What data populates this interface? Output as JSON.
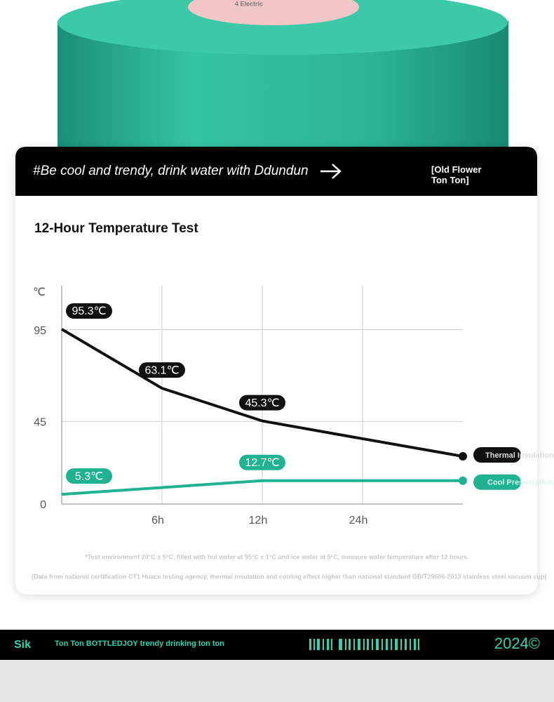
{
  "header": {
    "product_label": "4 Electric",
    "slogan": "#Be cool and trendy, drink water with Ddundun",
    "brand": "[Old Flower Ton Ton]"
  },
  "chart_data": {
    "type": "line",
    "title": "12-Hour Temperature Test",
    "y_label": "℃",
    "categories": [
      null,
      "6h",
      "12h",
      "24h",
      null
    ],
    "series": [
      {
        "name": "Thermal Insulation",
        "color": "#111111",
        "values": [
          95.3,
          63.1,
          45.3,
          35.6,
          26
        ],
        "value_labels": [
          "95.3℃",
          "63.1℃",
          "45.3℃",
          null,
          null
        ]
      },
      {
        "name": "Cool Preservation",
        "color": "#1fb394",
        "values": [
          5.3,
          9,
          12.7,
          12.7,
          12.7
        ],
        "value_labels": [
          "5.3℃",
          null,
          "12.7℃",
          null,
          null
        ]
      }
    ],
    "ylim": [
      0,
      119
    ],
    "yticks": [
      0,
      45,
      95
    ],
    "grid": true
  },
  "notes": [
    "*Test environment 20°C ± 5°C, filled with hot water at 95°C ± 1°C and ice water at 5°C, measure water temperature after 12 hours.",
    "(Data from national certification CT1 Huace testing agency, thermal insulation and cooling effect higher than national standard GB/T29606-2013 stainless steel vacuum cup)"
  ],
  "footer": {
    "logo": "Sik",
    "tagline": "Ton Ton BOTTLEDJOY trendy drinking ton ton",
    "year": "2024©"
  }
}
